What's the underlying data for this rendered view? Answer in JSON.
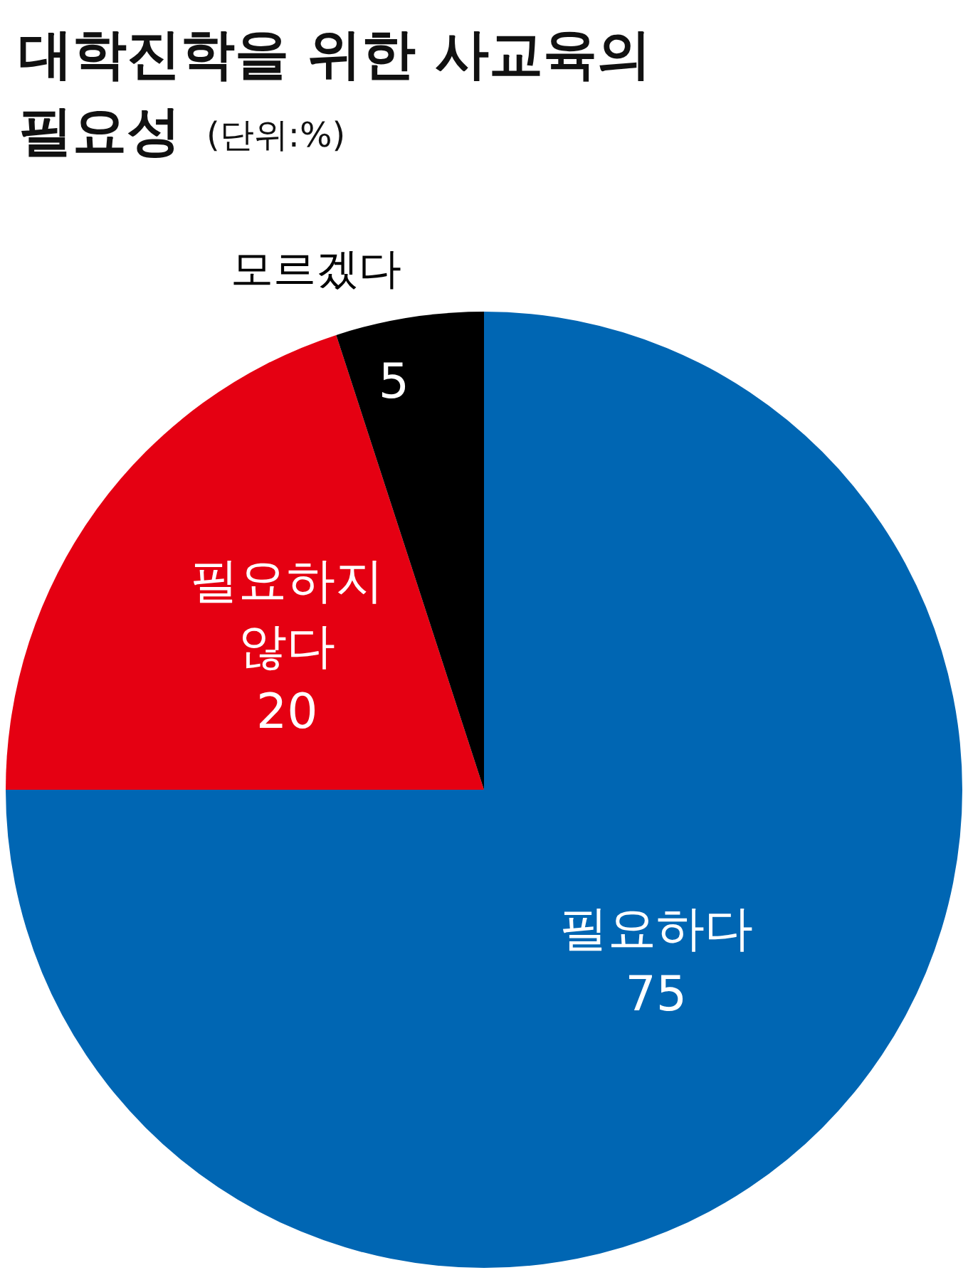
{
  "chart_data": {
    "type": "pie",
    "title": "대학진학을 위한 사교육의 필요성",
    "subtitle": "(단위:%)",
    "categories": [
      "필요하다",
      "필요하지 않다",
      "모르겠다"
    ],
    "values": [
      75,
      20,
      5
    ],
    "colors": [
      "#0066b3",
      "#e50012",
      "#000000"
    ],
    "data_labels": true,
    "legend": false
  }
}
